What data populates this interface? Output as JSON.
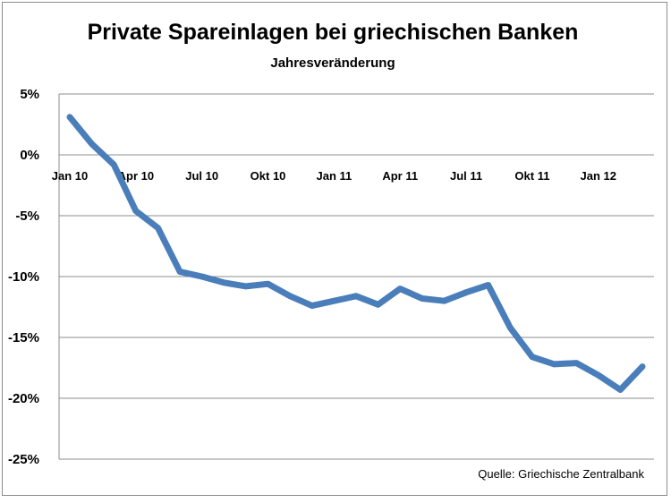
{
  "chart_data": {
    "type": "line",
    "title": "Private Spareinlagen bei griechischen Banken",
    "subtitle": "Jahresveränderung",
    "source": "Quelle: Griechische Zentralbank",
    "xlabel": "",
    "ylabel": "",
    "ylim": [
      -25,
      5
    ],
    "yticks": [
      5,
      0,
      -5,
      -10,
      -15,
      -20,
      -25
    ],
    "ytick_labels": [
      "5%",
      "0%",
      "-5%",
      "-10%",
      "-15%",
      "-20%",
      "-25%"
    ],
    "x_tick_labels": [
      "Jan 10",
      "Apr 10",
      "Jul 10",
      "Okt 10",
      "Jan 11",
      "Apr 11",
      "Jul 11",
      "Okt 11",
      "Jan 12"
    ],
    "x_tick_index": [
      0,
      3,
      6,
      9,
      12,
      15,
      18,
      21,
      24
    ],
    "grid": true,
    "legend": "none",
    "line_color": "#4a7ebb",
    "series": [
      {
        "categories": [
          "Jan 10",
          "Feb 10",
          "Mrz 10",
          "Apr 10",
          "Mai 10",
          "Jun 10",
          "Jul 10",
          "Aug 10",
          "Sep 10",
          "Okt 10",
          "Nov 10",
          "Dez 10",
          "Jan 11",
          "Feb 11",
          "Mrz 11",
          "Apr 11",
          "Mai 11",
          "Jun 11",
          "Jul 11",
          "Aug 11",
          "Sep 11",
          "Okt 11",
          "Nov 11",
          "Dez 11",
          "Jan 12",
          "Feb 12",
          "Mrz 12"
        ],
        "values": [
          3.1,
          0.9,
          -0.8,
          -4.6,
          -6.0,
          -9.6,
          -10.0,
          -10.5,
          -10.8,
          -10.6,
          -11.6,
          -12.4,
          -12.0,
          -11.6,
          -12.3,
          -11.0,
          -11.8,
          -12.0,
          -11.3,
          -10.7,
          -14.2,
          -16.6,
          -17.2,
          -17.1,
          -18.1,
          -19.3,
          -17.4
        ]
      }
    ]
  }
}
